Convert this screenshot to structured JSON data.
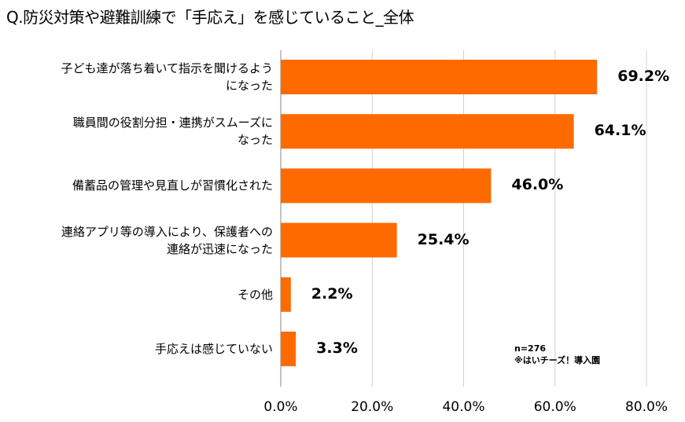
{
  "chart_data": {
    "type": "bar",
    "orientation": "horizontal",
    "title": "Q.防災対策や避難訓練で「手応え」を感じていること_全体",
    "categories": [
      "子ども達が落ち着いて指示を聞けるよう\nになった",
      "職員間の役割分担・連携がスムーズに\nなった",
      "備蓄品の管理や見直しが習慣化された",
      "連絡アプリ等の導入により、保護者への\n連絡が迅速になった",
      "その他",
      "手応えは感じていない"
    ],
    "values": [
      69.2,
      64.1,
      46.0,
      25.4,
      2.2,
      3.3
    ],
    "value_labels": [
      "69.2%",
      "64.1%",
      "46.0%",
      "25.4%",
      "2.2%",
      "3.3%"
    ],
    "xlim": [
      0,
      80
    ],
    "xticks": [
      0,
      20,
      40,
      60,
      80
    ],
    "xtick_labels": [
      "0.0%",
      "20.0%",
      "40.0%",
      "60.0%",
      "80.0%"
    ],
    "grid": true,
    "bar_color": "#FF6A00",
    "notes": [
      "n=276",
      "※はいチーズ！導入園"
    ]
  }
}
